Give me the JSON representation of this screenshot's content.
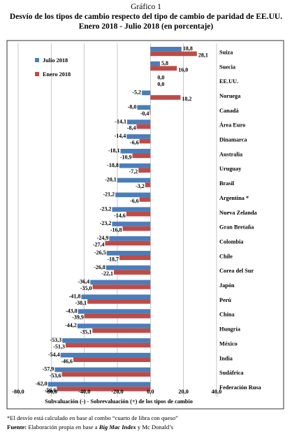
{
  "header": {
    "label": "Gráfico 1",
    "title_line1": "Desvío de los tipos de cambio respecto del tipo de cambio de paridad de EE.UU.",
    "title_line2": "Enero 2018 - Julio 2018 (en porcentaje)"
  },
  "chart_data": {
    "type": "bar",
    "orientation": "horizontal",
    "categories": [
      "Suiza",
      "Suecia",
      "EE.UU.",
      "Noruega",
      "Canadá",
      "Área Euro",
      "Dinamarca",
      "Australia",
      "Uruguay",
      "Brasil",
      "Argentina *",
      "Nueva Zelanda",
      "Gran Bretaña",
      "Colombia",
      "Chile",
      "Corea del Sur",
      "Japón",
      "Perú",
      "China",
      "Hungría",
      "México",
      "India",
      "Sudáfrica",
      "Federación Rusa"
    ],
    "series": [
      {
        "name": "Julio 2018",
        "color": "#4a7ebb",
        "values": [
          18.8,
          5.8,
          0.0,
          -5.2,
          -8.0,
          -14.1,
          -14.4,
          -18.1,
          -18.8,
          -20.1,
          -21.2,
          -23.2,
          -23.2,
          -24.9,
          -26.5,
          -26.8,
          -36.4,
          -41.8,
          -43.8,
          -44.2,
          -53.3,
          -54.4,
          -57.9,
          -62.0
        ],
        "labels": [
          "18,8",
          "5,8",
          "0,0",
          "-5,2",
          "-8,0",
          "-14,1",
          "-14,4",
          "-18,1",
          "-18,8",
          "-20,1",
          "-21,2",
          "-23,2",
          "-23,2",
          "-24,9",
          "-26,5",
          "-26,8",
          "-36,4",
          "-41,8",
          "-43,8",
          "-44,2",
          "-53,3",
          "-54,4",
          "-57,9",
          "-62,0"
        ]
      },
      {
        "name": "Enero 2018",
        "color": "#be4b48",
        "values": [
          28.1,
          16.0,
          0.0,
          18.2,
          -0.4,
          -8.4,
          -6.6,
          -10.9,
          -7.2,
          -3.2,
          -6.6,
          -14.6,
          -16.8,
          -27.4,
          -18.7,
          -22.1,
          -35.0,
          -38.1,
          -39.9,
          -35.1,
          -51.3,
          -46.6,
          -53.6,
          -56.6
        ],
        "labels": [
          "28,1",
          "16,0",
          "0,0",
          "18,2",
          "-0,4",
          "-8,4",
          "-6,6",
          "-10,9",
          "-7,2",
          "-3,2",
          "-6,6",
          "-14,6",
          "-16,8",
          "-27,4",
          "-18,7",
          "-22,1",
          "-35,0",
          "-38,1",
          "-39,9",
          "-35,1",
          "-51,3",
          "-46,6",
          "-53,6",
          "-56,6"
        ]
      }
    ],
    "xlim": [
      -80,
      40
    ],
    "xticks": [
      -80,
      -60,
      -40,
      -20,
      0,
      20,
      40
    ],
    "xtick_labels": [
      "-80,0",
      "-60,0",
      "-40,0",
      "-20,0",
      "0,0",
      "20,0",
      "40,0"
    ],
    "xlabel": "Subvaluación (-) - Sobrevaluación (+) de los tipos de cambio",
    "legend": "top-left",
    "grid": true
  },
  "notes": {
    "note1": "*El desvío está calculado en base al combo “cuarto de libra con queso”",
    "note2_bold": "Fuente:",
    "note2_a": " Elaboración propia en base a ",
    "note2_italic": "Big Mac Index",
    "note2_b": " y Mc Donald’s"
  }
}
